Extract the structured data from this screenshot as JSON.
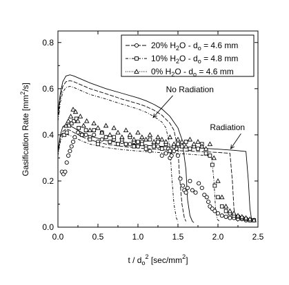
{
  "chart_data": {
    "type": "line",
    "title": "",
    "xlabel": {
      "pre": "t / d",
      "sub": "o",
      "sup": "2",
      "post": " [sec/mm",
      "sup2": "2",
      "end": "]"
    },
    "ylabel": {
      "pre": "Gasification Rate [mm",
      "sup": "2",
      "post": "/s]"
    },
    "xlim": [
      0,
      2.5
    ],
    "ylim": [
      0,
      0.85
    ],
    "xticks": [
      0.0,
      0.5,
      1.0,
      1.5,
      2.0,
      2.5
    ],
    "xtick_labels": [
      "0.0",
      "0.5",
      "1.0",
      "1.5",
      "2.0",
      "2.5"
    ],
    "yticks": [
      0.0,
      0.2,
      0.4,
      0.6,
      0.8
    ],
    "ytick_labels": [
      "0.0",
      "0.2",
      "0.4",
      "0.6",
      "0.8"
    ],
    "grid": false,
    "legend_position": "top-right",
    "legend": [
      {
        "marker": "circle",
        "dash": "6,2",
        "pre": "20% H",
        "sub": "2",
        "mid": "O - d",
        "sub2": "o",
        "post": " = 4.6 mm"
      },
      {
        "marker": "square",
        "dash": "4,2,1,2",
        "pre": "10% H",
        "sub": "2",
        "mid": "O - d",
        "sub2": "o",
        "post": " = 4.8 mm"
      },
      {
        "marker": "triangle",
        "dash": "1,1.5",
        "pre": "0% H",
        "sub": "2",
        "mid": "O - d",
        "sub2": "o",
        "post": " = 4.6 mm"
      }
    ],
    "annotations": [
      {
        "text": "No Radiation",
        "x": 1.35,
        "y": 0.585,
        "arrow_to": [
          1.19,
          0.475
        ]
      },
      {
        "text": "Radiation",
        "x": 1.9,
        "y": 0.42,
        "arrow_to": [
          2.16,
          0.34
        ]
      }
    ],
    "model_curves": [
      {
        "name": "no-radiation-1",
        "dash": "none",
        "x": [
          0.0,
          0.03,
          0.06,
          0.1,
          0.15,
          0.2,
          0.3,
          0.4,
          0.6,
          0.8,
          1.0,
          1.1,
          1.2,
          1.3,
          1.4,
          1.5,
          1.55,
          1.6,
          1.62,
          1.65,
          1.68,
          1.7
        ],
        "y": [
          0.5,
          0.58,
          0.63,
          0.655,
          0.66,
          0.655,
          0.64,
          0.625,
          0.6,
          0.58,
          0.56,
          0.548,
          0.532,
          0.512,
          0.48,
          0.43,
          0.38,
          0.25,
          0.12,
          0.05,
          0.025,
          0.02
        ]
      },
      {
        "name": "no-radiation-2",
        "dash": "6,2",
        "x": [
          0.0,
          0.03,
          0.06,
          0.1,
          0.15,
          0.2,
          0.3,
          0.4,
          0.6,
          0.8,
          1.0,
          1.1,
          1.2,
          1.3,
          1.4,
          1.45,
          1.5,
          1.52,
          1.55,
          1.58,
          1.6
        ],
        "y": [
          0.48,
          0.56,
          0.61,
          0.63,
          0.635,
          0.63,
          0.615,
          0.6,
          0.578,
          0.555,
          0.535,
          0.523,
          0.507,
          0.485,
          0.45,
          0.42,
          0.34,
          0.22,
          0.1,
          0.04,
          0.025
        ]
      },
      {
        "name": "no-radiation-3",
        "dash": "4,2,1,2",
        "x": [
          0.0,
          0.03,
          0.06,
          0.1,
          0.15,
          0.2,
          0.3,
          0.4,
          0.6,
          0.8,
          1.0,
          1.1,
          1.2,
          1.3,
          1.35,
          1.4,
          1.42,
          1.45,
          1.48,
          1.5
        ],
        "y": [
          0.46,
          0.54,
          0.585,
          0.605,
          0.61,
          0.605,
          0.59,
          0.575,
          0.555,
          0.533,
          0.512,
          0.498,
          0.48,
          0.455,
          0.43,
          0.35,
          0.23,
          0.1,
          0.04,
          0.025
        ]
      },
      {
        "name": "radiation-1",
        "dash": "none",
        "x": [
          0.0,
          0.03,
          0.06,
          0.1,
          0.15,
          0.2,
          0.3,
          0.4,
          0.6,
          0.8,
          1.0,
          1.2,
          1.4,
          1.6,
          1.8,
          2.0,
          2.2,
          2.35,
          2.38,
          2.4,
          2.42,
          2.45
        ],
        "y": [
          0.33,
          0.4,
          0.435,
          0.445,
          0.44,
          0.43,
          0.41,
          0.395,
          0.375,
          0.365,
          0.358,
          0.352,
          0.348,
          0.345,
          0.342,
          0.338,
          0.333,
          0.328,
          0.2,
          0.08,
          0.035,
          0.025
        ]
      },
      {
        "name": "radiation-2",
        "dash": "6,2",
        "x": [
          0.0,
          0.03,
          0.06,
          0.1,
          0.15,
          0.2,
          0.3,
          0.4,
          0.6,
          0.8,
          1.0,
          1.2,
          1.4,
          1.6,
          1.8,
          2.0,
          2.15,
          2.18,
          2.2,
          2.22,
          2.25
        ],
        "y": [
          0.32,
          0.385,
          0.415,
          0.425,
          0.42,
          0.41,
          0.392,
          0.378,
          0.36,
          0.35,
          0.343,
          0.338,
          0.333,
          0.33,
          0.327,
          0.324,
          0.32,
          0.2,
          0.08,
          0.035,
          0.025
        ]
      },
      {
        "name": "radiation-3",
        "dash": "4,2,1,2",
        "x": [
          0.0,
          0.03,
          0.06,
          0.1,
          0.15,
          0.2,
          0.3,
          0.4,
          0.6,
          0.8,
          1.0,
          1.2,
          1.4,
          1.6,
          1.8,
          1.92,
          1.95,
          1.97,
          1.99,
          2.02
        ],
        "y": [
          0.31,
          0.37,
          0.395,
          0.403,
          0.398,
          0.39,
          0.373,
          0.36,
          0.345,
          0.336,
          0.33,
          0.325,
          0.32,
          0.317,
          0.312,
          0.308,
          0.2,
          0.08,
          0.035,
          0.025
        ]
      }
    ],
    "series": [
      {
        "name": "20% H2O - do = 4.6 mm",
        "marker": "circle",
        "x": [
          0.05,
          0.07,
          0.09,
          0.11,
          0.13,
          0.15,
          0.17,
          0.19,
          0.21,
          0.25,
          0.3,
          0.35,
          0.4,
          0.45,
          0.5,
          0.55,
          0.6,
          0.65,
          0.7,
          0.75,
          0.8,
          0.85,
          0.9,
          0.95,
          1.0,
          1.05,
          1.1,
          1.15,
          1.2,
          1.25,
          1.3,
          1.35,
          1.38,
          1.4,
          1.42,
          1.45,
          1.48,
          1.5,
          1.53,
          1.56,
          1.58,
          1.6,
          1.62,
          1.65,
          1.68,
          1.72,
          1.76,
          1.8,
          1.83,
          1.86,
          1.88,
          1.9,
          1.93,
          1.96,
          2.0,
          2.05,
          2.1,
          2.15,
          2.2,
          2.25,
          2.3,
          2.35,
          2.4,
          2.45
        ],
        "y": [
          0.24,
          0.23,
          0.24,
          0.28,
          0.31,
          0.33,
          0.35,
          0.37,
          0.39,
          0.41,
          0.4,
          0.4,
          0.39,
          0.4,
          0.37,
          0.38,
          0.39,
          0.37,
          0.38,
          0.36,
          0.37,
          0.36,
          0.36,
          0.37,
          0.35,
          0.37,
          0.35,
          0.33,
          0.36,
          0.35,
          0.31,
          0.32,
          0.34,
          0.3,
          0.31,
          0.33,
          0.34,
          0.31,
          0.21,
          0.18,
          0.16,
          0.15,
          0.17,
          0.2,
          0.16,
          0.15,
          0.19,
          0.17,
          0.14,
          0.13,
          0.11,
          0.09,
          0.08,
          0.07,
          0.06,
          0.05,
          0.045,
          0.04,
          0.04,
          0.035,
          0.035,
          0.03,
          0.03,
          0.03
        ]
      },
      {
        "name": "10% H2O - do = 4.8 mm",
        "marker": "square",
        "x": [
          0.08,
          0.11,
          0.14,
          0.17,
          0.2,
          0.23,
          0.26,
          0.3,
          0.35,
          0.4,
          0.45,
          0.5,
          0.55,
          0.6,
          0.65,
          0.7,
          0.75,
          0.8,
          0.85,
          0.9,
          0.95,
          1.0,
          1.05,
          1.1,
          1.15,
          1.2,
          1.25,
          1.3,
          1.35,
          1.4,
          1.45,
          1.5,
          1.55,
          1.6,
          1.65,
          1.7,
          1.75,
          1.8,
          1.85,
          1.9,
          1.93,
          1.96,
          2.0,
          2.05,
          2.1,
          2.15,
          2.2,
          2.25,
          2.3,
          2.35,
          2.4,
          2.45
        ],
        "y": [
          0.4,
          0.41,
          0.44,
          0.45,
          0.46,
          0.47,
          0.43,
          0.4,
          0.42,
          0.38,
          0.42,
          0.36,
          0.41,
          0.39,
          0.37,
          0.39,
          0.36,
          0.38,
          0.36,
          0.39,
          0.35,
          0.37,
          0.36,
          0.34,
          0.38,
          0.35,
          0.37,
          0.34,
          0.36,
          0.33,
          0.35,
          0.36,
          0.35,
          0.37,
          0.34,
          0.35,
          0.34,
          0.36,
          0.32,
          0.31,
          0.27,
          0.18,
          0.13,
          0.09,
          0.07,
          0.06,
          0.05,
          0.045,
          0.04,
          0.035,
          0.03,
          0.03
        ]
      },
      {
        "name": "0% H2O - do = 4.6 mm",
        "marker": "triangle",
        "x": [
          0.1,
          0.13,
          0.16,
          0.19,
          0.22,
          0.25,
          0.28,
          0.32,
          0.36,
          0.4,
          0.45,
          0.5,
          0.55,
          0.6,
          0.65,
          0.7,
          0.75,
          0.8,
          0.85,
          0.9,
          0.95,
          1.0,
          1.05,
          1.1,
          1.15,
          1.2,
          1.25,
          1.3,
          1.35,
          1.4,
          1.45,
          1.5,
          1.55,
          1.6,
          1.65,
          1.7,
          1.75,
          1.8,
          1.85,
          1.9,
          1.95,
          2.0,
          2.05,
          2.1,
          2.15,
          2.2,
          2.25,
          2.3,
          2.35,
          2.4,
          2.45
        ],
        "y": [
          0.44,
          0.46,
          0.48,
          0.51,
          0.5,
          0.46,
          0.48,
          0.44,
          0.46,
          0.42,
          0.45,
          0.43,
          0.41,
          0.44,
          0.4,
          0.43,
          0.41,
          0.39,
          0.42,
          0.4,
          0.38,
          0.41,
          0.39,
          0.38,
          0.4,
          0.37,
          0.39,
          0.38,
          0.37,
          0.39,
          0.36,
          0.38,
          0.37,
          0.35,
          0.38,
          0.36,
          0.37,
          0.35,
          0.34,
          0.36,
          0.3,
          0.2,
          0.13,
          0.09,
          0.07,
          0.06,
          0.05,
          0.045,
          0.04,
          0.035,
          0.03
        ]
      }
    ]
  }
}
